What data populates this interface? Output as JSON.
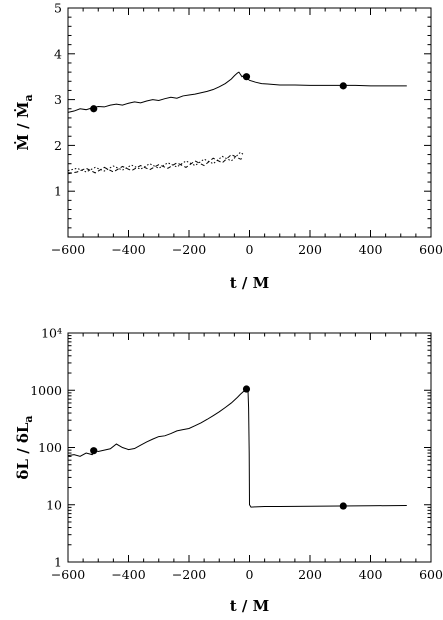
{
  "chart_data": [
    {
      "type": "line",
      "panel": "top",
      "xlabel": "t / M",
      "ylabel_main": "Ṁ / Ṁ",
      "ylabel_sub": "a",
      "xlim": [
        -600,
        600
      ],
      "ylim": [
        0,
        5
      ],
      "xticks": [
        -600,
        -400,
        -200,
        0,
        200,
        400,
        600
      ],
      "yticks": [
        1,
        2,
        3,
        4,
        5
      ],
      "yscale": "linear",
      "grid": false,
      "series": [
        {
          "style": "solid",
          "x": [
            -600,
            -580,
            -560,
            -540,
            -520,
            -500,
            -480,
            -460,
            -440,
            -420,
            -400,
            -380,
            -360,
            -340,
            -320,
            -300,
            -280,
            -260,
            -240,
            -220,
            -200,
            -180,
            -160,
            -140,
            -120,
            -100,
            -80,
            -60,
            -50,
            -40,
            -35,
            -30,
            -25,
            -20
          ],
          "y": [
            2.72,
            2.75,
            2.8,
            2.78,
            2.82,
            2.85,
            2.84,
            2.88,
            2.9,
            2.88,
            2.92,
            2.95,
            2.93,
            2.97,
            3.0,
            2.98,
            3.02,
            3.05,
            3.03,
            3.08,
            3.1,
            3.12,
            3.15,
            3.18,
            3.22,
            3.28,
            3.35,
            3.45,
            3.52,
            3.58,
            3.6,
            3.55,
            3.5,
            3.52
          ]
        },
        {
          "style": "solid",
          "x": [
            -10,
            0,
            20,
            40,
            60,
            80,
            100,
            150,
            200,
            250,
            300,
            350,
            400,
            450,
            520
          ],
          "y": [
            3.48,
            3.42,
            3.38,
            3.35,
            3.34,
            3.33,
            3.32,
            3.32,
            3.31,
            3.31,
            3.31,
            3.31,
            3.3,
            3.3,
            3.3
          ]
        },
        {
          "style": "dotted",
          "x": [
            -600,
            -570,
            -540,
            -510,
            -480,
            -450,
            -420,
            -390,
            -360,
            -330,
            -300,
            -270,
            -240,
            -210,
            -180,
            -150,
            -120,
            -90,
            -60,
            -30,
            -20
          ],
          "y": [
            1.45,
            1.5,
            1.42,
            1.52,
            1.44,
            1.55,
            1.46,
            1.57,
            1.48,
            1.6,
            1.5,
            1.62,
            1.53,
            1.66,
            1.56,
            1.7,
            1.6,
            1.76,
            1.66,
            1.85,
            1.8
          ]
        },
        {
          "style": "dashed",
          "x": [
            -600,
            -570,
            -540,
            -510,
            -480,
            -450,
            -420,
            -390,
            -360,
            -330,
            -300,
            -270,
            -240,
            -210,
            -180,
            -150,
            -120,
            -90,
            -60,
            -30,
            -20
          ],
          "y": [
            1.38,
            1.42,
            1.5,
            1.4,
            1.52,
            1.42,
            1.54,
            1.45,
            1.56,
            1.47,
            1.58,
            1.5,
            1.62,
            1.52,
            1.66,
            1.56,
            1.72,
            1.62,
            1.8,
            1.7,
            1.72
          ]
        }
      ],
      "markers": {
        "x": [
          -515,
          -10,
          310
        ],
        "y": [
          2.8,
          3.5,
          3.3
        ]
      }
    },
    {
      "type": "line",
      "panel": "bottom",
      "xlabel": "t / M",
      "ylabel_main": "δL / δL",
      "ylabel_sub": "a",
      "xlim": [
        -600,
        600
      ],
      "ylim": [
        1,
        10000
      ],
      "xticks": [
        -600,
        -400,
        -200,
        0,
        200,
        400,
        600
      ],
      "yticks": [
        1,
        10,
        100,
        1000,
        10000
      ],
      "ytick_labels": [
        "1",
        "10",
        "100",
        "1000",
        "10⁴"
      ],
      "yscale": "log",
      "grid": false,
      "series": [
        {
          "style": "solid",
          "x": [
            -600,
            -580,
            -560,
            -540,
            -520,
            -510,
            -500,
            -480,
            -460,
            -440,
            -420,
            -400,
            -380,
            -360,
            -340,
            -320,
            -300,
            -280,
            -260,
            -240,
            -220,
            -200,
            -180,
            -160,
            -140,
            -120,
            -100,
            -80,
            -60,
            -40,
            -30,
            -20,
            -15,
            -12,
            -8,
            -5,
            -3,
            -1,
            0,
            5,
            20,
            50,
            100,
            200,
            300,
            400,
            520
          ],
          "y": [
            72,
            75,
            70,
            80,
            75,
            88,
            85,
            90,
            95,
            115,
            100,
            92,
            96,
            110,
            125,
            140,
            155,
            160,
            175,
            195,
            205,
            215,
            240,
            270,
            310,
            360,
            420,
            500,
            600,
            750,
            850,
            950,
            1020,
            1040,
            1050,
            1000,
            500,
            80,
            10,
            9.1,
            9.2,
            9.3,
            9.3,
            9.4,
            9.5,
            9.6,
            9.7
          ]
        }
      ],
      "markers": {
        "x": [
          -515,
          -10,
          310
        ],
        "y": [
          88,
          1050,
          9.5
        ]
      }
    }
  ]
}
